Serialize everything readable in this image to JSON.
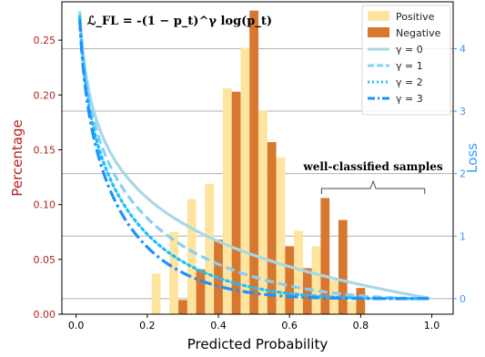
{
  "chart_data": {
    "type": "bar",
    "title": "",
    "formula": "ℒ_FL = -(1 − p_t)^γ log(p_t)",
    "xlabel": "Predicted Probability",
    "ylabel_left": "Percentage",
    "ylabel_right": "Loss",
    "xlim": [
      -0.04,
      1.06
    ],
    "ylim_left": [
      0,
      0.285
    ],
    "ylim_right": [
      -0.25,
      4.75
    ],
    "xticks": [
      0.0,
      0.2,
      0.4,
      0.6,
      0.8,
      1.0
    ],
    "xtick_labels": [
      "0.0",
      "0.2",
      "0.4",
      "0.6",
      "0.8",
      "1.0"
    ],
    "yticks_left": [
      0.0,
      0.05,
      0.1,
      0.15,
      0.2,
      0.25
    ],
    "ytick_labels_left": [
      "0.00",
      "0.05",
      "0.10",
      "0.15",
      "0.20",
      "0.25"
    ],
    "yticks_right": [
      0,
      1,
      2,
      3,
      4
    ],
    "ytick_labels_right": [
      "0",
      "1",
      "2",
      "3",
      "4"
    ],
    "grid": "horizontal (right axis)",
    "bar_width": 0.025,
    "series": [
      {
        "name": "Positive",
        "color": "#fde59f",
        "x": [
          0.225,
          0.275,
          0.325,
          0.375,
          0.425,
          0.475,
          0.525,
          0.575,
          0.625,
          0.675,
          0.725,
          0.775
        ],
        "values": [
          0.037,
          0.075,
          0.105,
          0.119,
          0.206,
          0.243,
          0.186,
          0.143,
          0.076,
          0.062,
          0.031,
          0.012
        ]
      },
      {
        "name": "Negative",
        "color": "#d8772f",
        "x": [
          0.3,
          0.35,
          0.4,
          0.45,
          0.5,
          0.55,
          0.6,
          0.65,
          0.7,
          0.75,
          0.8
        ],
        "values": [
          0.013,
          0.041,
          0.068,
          0.203,
          0.277,
          0.157,
          0.062,
          0.042,
          0.106,
          0.086,
          0.024
        ]
      }
    ],
    "loss_curves": [
      {
        "name": "γ = 0",
        "gamma": 0,
        "color": "#a8d8e6",
        "dash": "solid"
      },
      {
        "name": "γ = 1",
        "gamma": 1,
        "color": "#87cefa",
        "dash": "dashed"
      },
      {
        "name": "γ = 2",
        "gamma": 2,
        "color": "#1fbfff",
        "dash": "dotted"
      },
      {
        "name": "γ = 3",
        "gamma": 3,
        "color": "#1e90ff",
        "dash": "dashdot"
      }
    ],
    "legend_position": "top-right",
    "annotation": {
      "text": "well-classified samples",
      "x_range": [
        0.69,
        0.98
      ]
    },
    "colors": {
      "left_axis_label": "#b22222",
      "right_axis": "#3399ff",
      "grid": "#b0b0b0"
    }
  }
}
